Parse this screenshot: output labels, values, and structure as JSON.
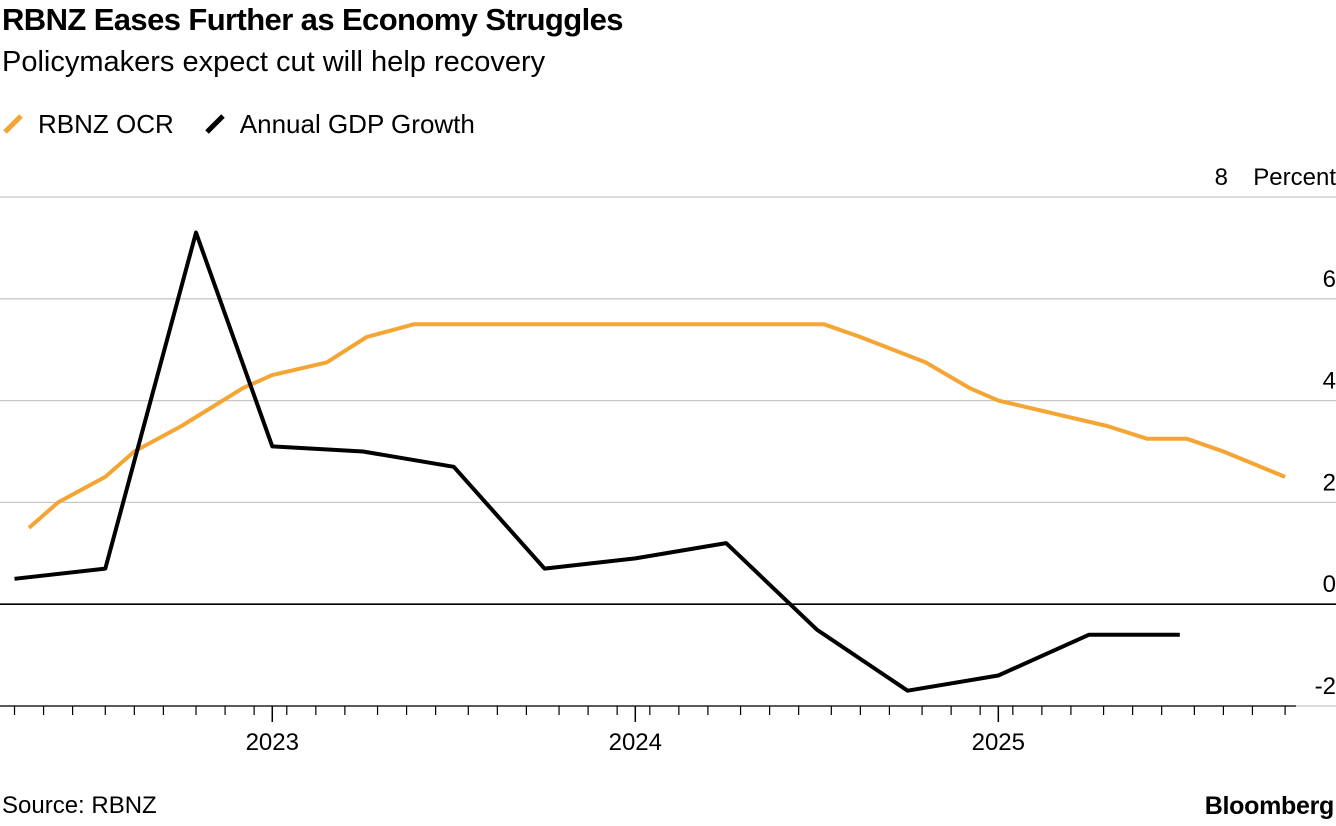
{
  "title": "RBNZ Eases Further as Economy Struggles",
  "subtitle": "Policymakers expect cut will help recovery",
  "source": "Source: RBNZ",
  "brand": "Bloomberg",
  "colors": {
    "ocr": "#f4a534",
    "gdp": "#000000",
    "grid": "#c8c8c8",
    "zero": "#000000"
  },
  "chart_data": {
    "type": "line",
    "title": "RBNZ Eases Further as Economy Struggles",
    "subtitle": "Policymakers expect cut will help recovery",
    "xlabel": "",
    "ylabel": "Percent",
    "unit_label": "Percent",
    "xlim": [
      2022.25,
      2025.82
    ],
    "ylim": [
      -2,
      8
    ],
    "y_ticks": [
      -2,
      0,
      2,
      4,
      6,
      8
    ],
    "y_tick_labels": [
      "-2",
      "0",
      "2",
      "4",
      "6",
      "8"
    ],
    "x_ticks": [
      2023,
      2024,
      2025
    ],
    "x_tick_labels": [
      "2023",
      "2024",
      "2025"
    ],
    "x_minor_ticks": [
      2022.29,
      2022.37,
      2022.45,
      2022.54,
      2022.62,
      2022.7,
      2022.79,
      2022.87,
      2022.95,
      2023.04,
      2023.12,
      2023.2,
      2023.29,
      2023.37,
      2023.45,
      2023.54,
      2023.62,
      2023.7,
      2023.79,
      2023.87,
      2023.95,
      2024.04,
      2024.12,
      2024.2,
      2024.29,
      2024.37,
      2024.45,
      2024.54,
      2024.62,
      2024.7,
      2024.79,
      2024.87,
      2024.95,
      2025.04,
      2025.12,
      2025.2,
      2025.29,
      2025.37,
      2025.45,
      2025.54,
      2025.62,
      2025.7,
      2025.79
    ],
    "legend": "top-left",
    "grid": true,
    "series": [
      {
        "name": "RBNZ OCR",
        "color": "#f4a534",
        "x": [
          2022.33,
          2022.41,
          2022.54,
          2022.62,
          2022.75,
          2022.92,
          2023.0,
          2023.15,
          2023.26,
          2023.39,
          2023.5,
          2023.7,
          2023.9,
          2024.1,
          2024.3,
          2024.52,
          2024.62,
          2024.8,
          2024.92,
          2025.0,
          2025.15,
          2025.3,
          2025.41,
          2025.52,
          2025.62,
          2025.79
        ],
        "values": [
          1.5,
          2.0,
          2.5,
          3.0,
          3.5,
          4.25,
          4.5,
          4.75,
          5.25,
          5.5,
          5.5,
          5.5,
          5.5,
          5.5,
          5.5,
          5.5,
          5.25,
          4.75,
          4.25,
          4.0,
          3.75,
          3.5,
          3.25,
          3.25,
          3.0,
          2.5
        ]
      },
      {
        "name": "Annual GDP Growth",
        "color": "#000000",
        "x": [
          2022.29,
          2022.54,
          2022.79,
          2023.0,
          2023.25,
          2023.5,
          2023.75,
          2024.0,
          2024.25,
          2024.5,
          2024.75,
          2025.0,
          2025.25,
          2025.5
        ],
        "values": [
          0.5,
          0.7,
          7.3,
          3.1,
          3.0,
          2.7,
          0.7,
          0.9,
          1.2,
          -0.5,
          -1.7,
          -1.4,
          -0.6,
          -0.6
        ]
      }
    ]
  }
}
